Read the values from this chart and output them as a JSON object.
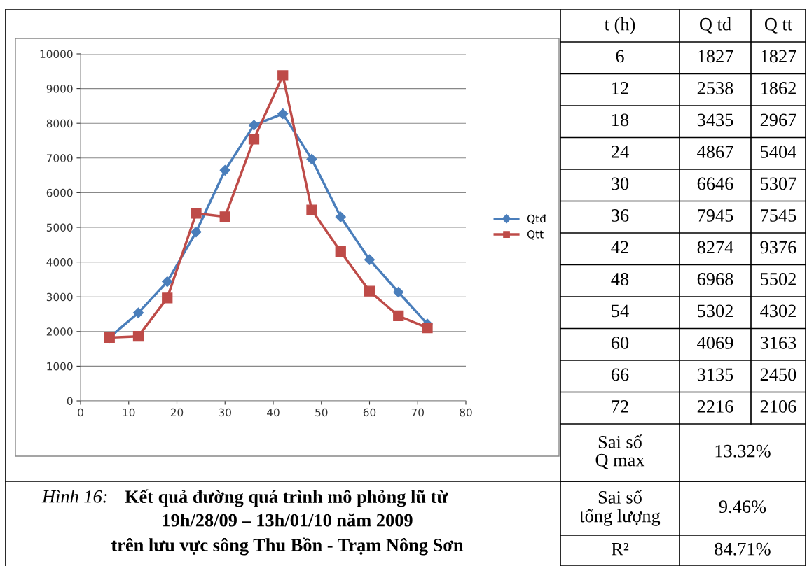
{
  "chart_data": {
    "type": "line",
    "x": [
      6,
      12,
      18,
      24,
      30,
      36,
      42,
      48,
      54,
      60,
      66,
      72
    ],
    "series": [
      {
        "name": "Qtđ",
        "color": "#4a7ebb",
        "marker": "diamond",
        "values": [
          1827,
          2538,
          3435,
          4867,
          6646,
          7945,
          8274,
          6968,
          5302,
          4069,
          3135,
          2216
        ]
      },
      {
        "name": "Qtt",
        "color": "#be4b48",
        "marker": "square",
        "values": [
          1827,
          1862,
          2967,
          5404,
          5307,
          7545,
          9376,
          5502,
          4302,
          3163,
          2450,
          2106
        ]
      }
    ],
    "xlim": [
      0,
      80
    ],
    "xticks": [
      0,
      10,
      20,
      30,
      40,
      50,
      60,
      70,
      80
    ],
    "ylim": [
      0,
      10000
    ],
    "yticks": [
      0,
      1000,
      2000,
      3000,
      4000,
      5000,
      6000,
      7000,
      8000,
      9000,
      10000
    ],
    "grid": "y",
    "legend": "right",
    "line_style": "solid",
    "annotations": [
      "Hình 16:",
      "Kết quả đường quá trình mô phỏng lũ từ\n19h/28/09 – 13h/01/10 năm 2009\ntrên lưu vực sông Thu Bồn - Trạm Nông Sơn",
      "t (h)",
      "Q tđ",
      "Q tt",
      "Sai số\nQ max",
      "13.32%",
      "Sai số\ntổng lượng",
      "9.46%",
      "R²",
      "84.71%",
      "6",
      "1827",
      "1827",
      "12",
      "2538",
      "1862",
      "18",
      "3435",
      "2967",
      "24",
      "4867",
      "5404",
      "30",
      "6646",
      "5307",
      "36",
      "7945",
      "7545",
      "42",
      "8274",
      "9376",
      "48",
      "6968",
      "5502",
      "54",
      "5302",
      "4302",
      "60",
      "4069",
      "3163",
      "66",
      "3135",
      "2450",
      "72",
      "2216",
      "2106"
    ]
  }
}
